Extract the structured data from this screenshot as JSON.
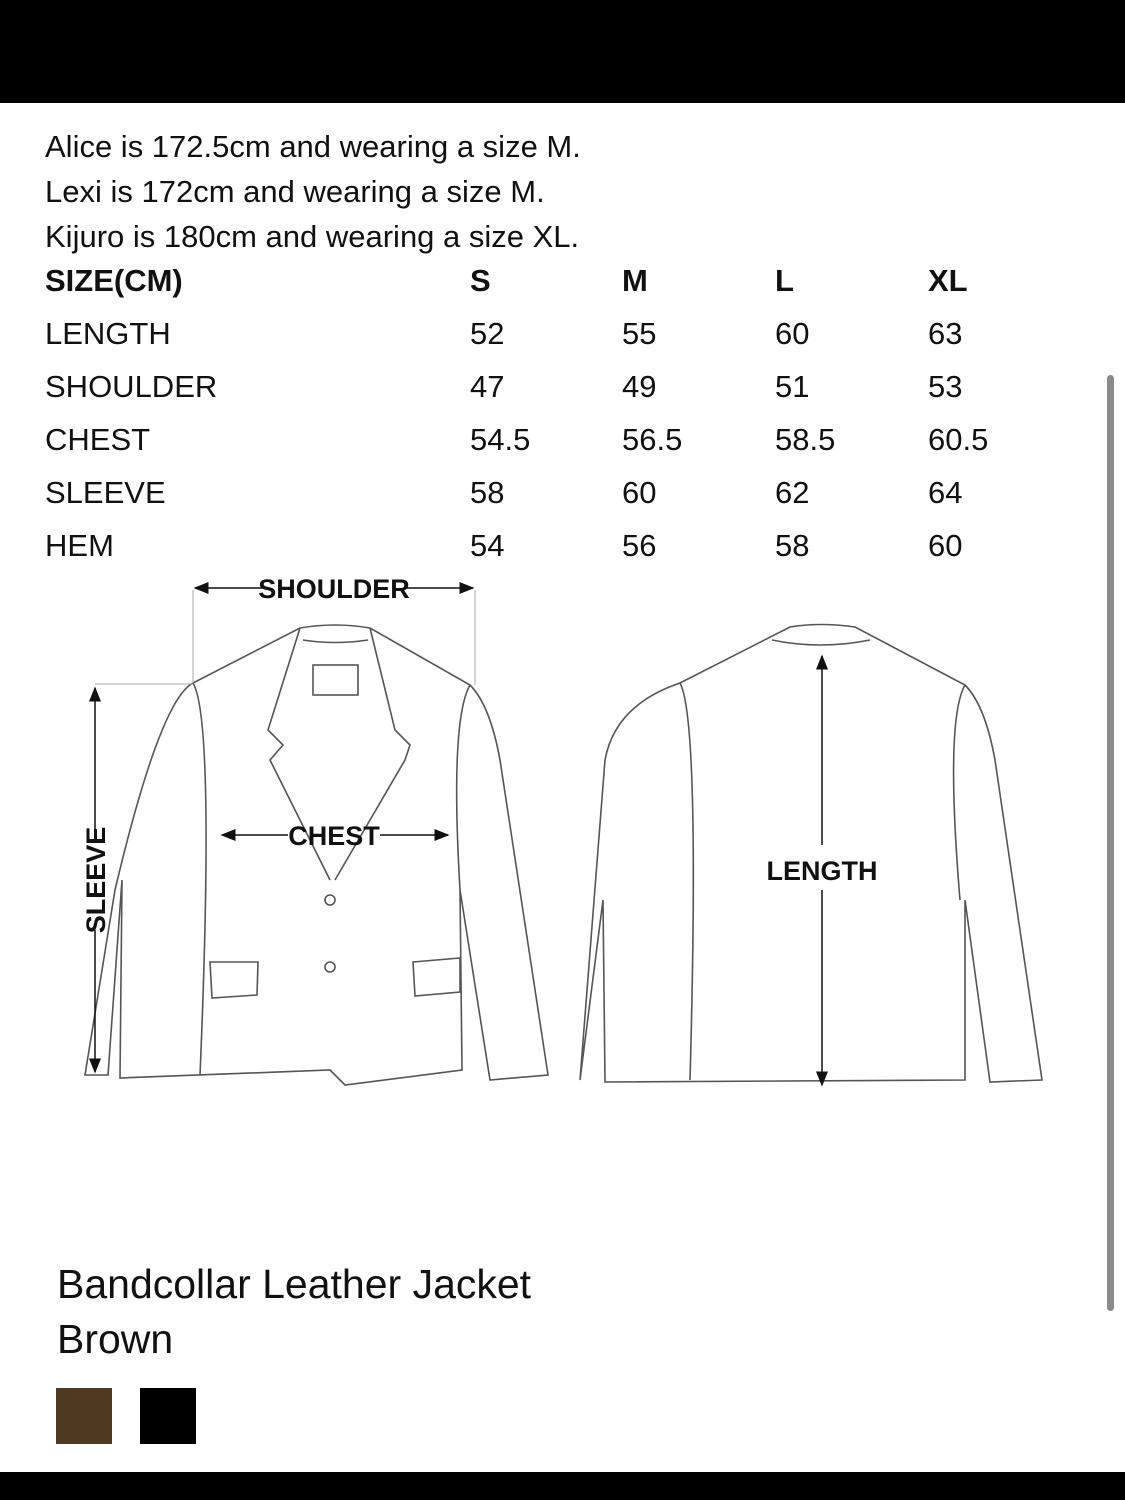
{
  "models": [
    "Alice is 172.5cm and wearing a size M.",
    "Lexi is 172cm and wearing a size M.",
    "Kijuro is 180cm and wearing a size XL."
  ],
  "size_table": {
    "header": [
      "SIZE(CM)",
      "S",
      "M",
      "L",
      "XL"
    ],
    "rows": [
      [
        "LENGTH",
        "52",
        "55",
        "60",
        "63"
      ],
      [
        "SHOULDER",
        "47",
        "49",
        "51",
        "53"
      ],
      [
        "CHEST",
        "54.5",
        "56.5",
        "58.5",
        "60.5"
      ],
      [
        "SLEEVE",
        "58",
        "60",
        "62",
        "64"
      ],
      [
        "HEM",
        "54",
        "56",
        "58",
        "60"
      ]
    ]
  },
  "diagram": {
    "shoulder": "SHOULDER",
    "chest": "CHEST",
    "sleeve": "SLEEVE",
    "length": "LENGTH"
  },
  "product": {
    "name": "Bandcollar Leather Jacket",
    "color": "Brown",
    "swatches": [
      {
        "name": "Brown",
        "hex": "#4e3a20"
      },
      {
        "name": "Black",
        "hex": "#000000"
      }
    ]
  }
}
